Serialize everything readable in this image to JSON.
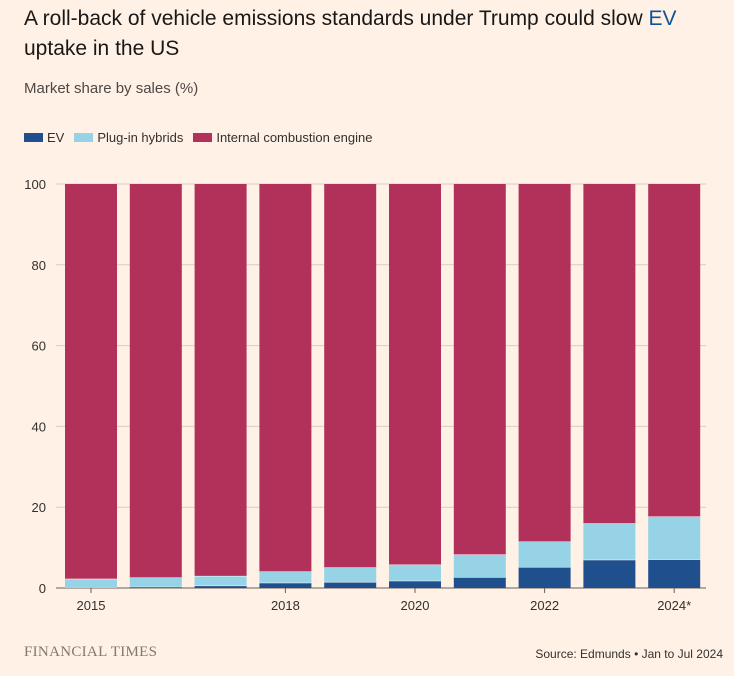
{
  "header": {
    "title_main": "A roll-back of vehicle emissions standards under Trump could slow ",
    "title_ev": "EV",
    "title_end": "uptake in the US",
    "subtitle": "Market share by sales (%)"
  },
  "footer": {
    "logo": "FINANCIAL TIMES",
    "source": "Source: Edmunds • Jan to Jul 2024"
  },
  "colors": {
    "ev": "#1f4f8c",
    "phev": "#96d3e6",
    "ice": "#b1315b",
    "grid": "#d9ccc1",
    "background": "#fff1e5"
  },
  "chart_data": {
    "type": "bar",
    "stacked": true,
    "categories": [
      "2015",
      "2016",
      "2017",
      "2018",
      "2019",
      "2020",
      "2021",
      "2022",
      "2023",
      "2024*"
    ],
    "tick_labels": [
      "2015",
      "",
      "",
      "2018",
      "",
      "2020",
      "",
      "2022",
      "",
      "2024*"
    ],
    "series": [
      {
        "name": "EV",
        "values": [
          0.2,
          0.3,
          0.6,
          1.3,
          1.5,
          1.8,
          2.7,
          5.2,
          7.0,
          7.1
        ]
      },
      {
        "name": "Plug-in hybrids",
        "values": [
          2.1,
          2.3,
          2.4,
          2.8,
          3.6,
          4.0,
          5.6,
          6.3,
          9.0,
          10.6
        ]
      },
      {
        "name": "Internal combustion engine",
        "values": [
          97.7,
          97.4,
          97.0,
          95.9,
          94.9,
          94.2,
          91.7,
          88.5,
          84.0,
          82.3
        ]
      }
    ],
    "y_ticks": [
      0,
      20,
      40,
      60,
      80,
      100
    ],
    "ylim": [
      0,
      100
    ],
    "xlabel": "",
    "ylabel": "",
    "grid": true,
    "legend_position": "top-left"
  }
}
